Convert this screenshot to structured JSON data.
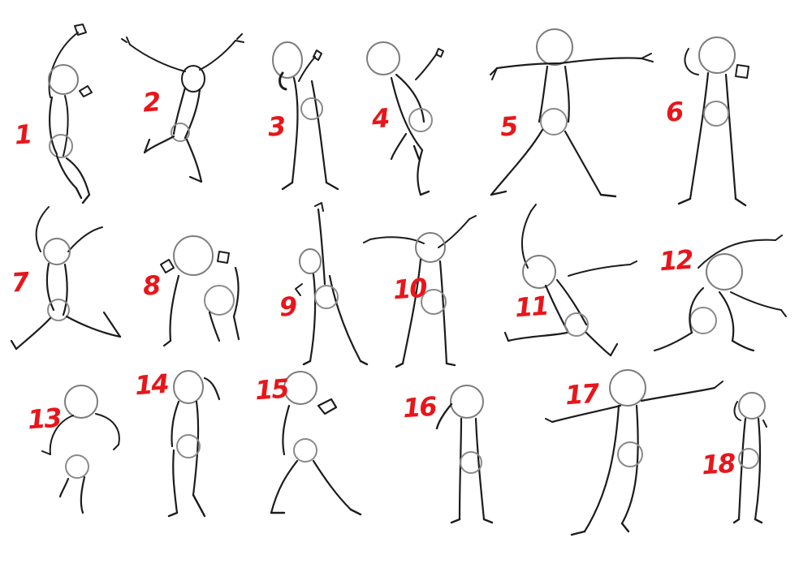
{
  "sheet": {
    "numbers": [
      "1",
      "2",
      "3",
      "4",
      "5",
      "6",
      "7",
      "8",
      "9",
      "10",
      "11",
      "12",
      "13",
      "14",
      "15",
      "16",
      "17",
      "18"
    ]
  },
  "colors": {
    "number_red": "#e8161b",
    "sketch_dark": "#1c1c1c",
    "construction_gray": "#8a8a8a",
    "paper": "#ffffff"
  }
}
